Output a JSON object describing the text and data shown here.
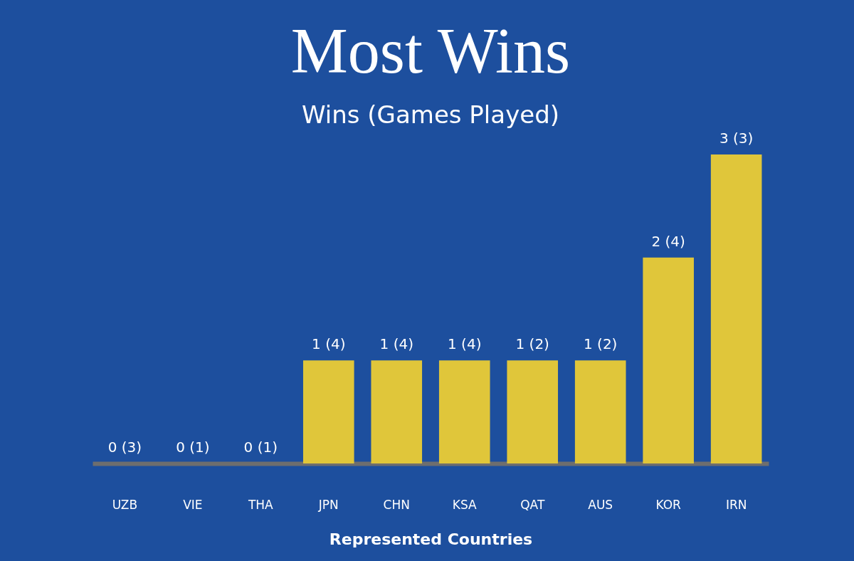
{
  "chart_data": {
    "type": "bar",
    "title": "Most Wins",
    "subtitle": "Wins (Games Played)",
    "xlabel": "Represented Countries",
    "categories": [
      "UZB",
      "VIE",
      "THA",
      "JPN",
      "CHN",
      "KSA",
      "QAT",
      "AUS",
      "KOR",
      "IRN"
    ],
    "values": [
      0,
      0,
      0,
      1,
      1,
      1,
      1,
      1,
      2,
      3
    ],
    "value_labels": [
      "0 (3)",
      "0 (1)",
      "0 (1)",
      "1 (4)",
      "1 (4)",
      "1 (4)",
      "1 (2)",
      "1 (2)",
      "2 (4)",
      "3 (3)"
    ],
    "color": "#e0c63a"
  }
}
